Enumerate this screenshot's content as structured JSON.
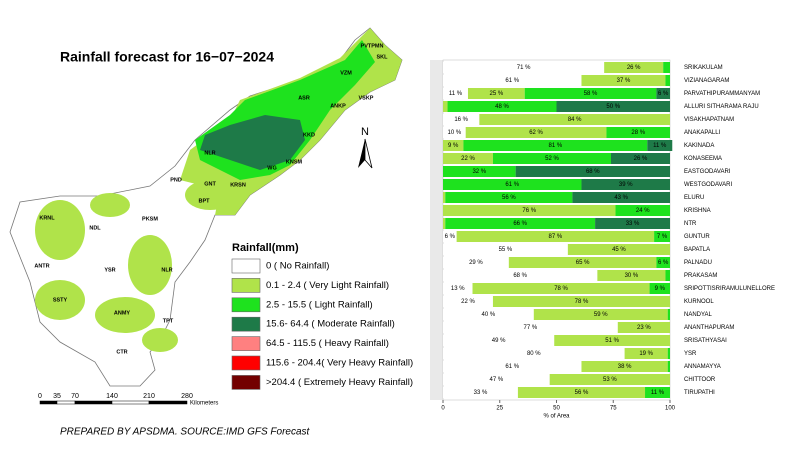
{
  "title": "Rainfall forecast for 16−07−2024",
  "footer": "PREPARED BY APSDMA. SOURCE:IMD GFS Forecast",
  "north": "N",
  "map_labels": [
    "PVTPMN",
    "SKL",
    "VZM",
    "ASR",
    "VSKP",
    "ANKP",
    "KKD",
    "NLR",
    "KNSM",
    "WG",
    "PND",
    "GNT",
    "KRSN",
    "BPT",
    "PKSM",
    "KRNL",
    "NDL",
    "NLR",
    "ANTR",
    "YSR",
    "SSTY",
    "ANMY",
    "TPT",
    "CTR"
  ],
  "legend_title": "Rainfall(mm)",
  "legend_extra": [
    {
      "name": "64.5 - 115.5 ( Heavy Rainfall)",
      "color": "#ff8080"
    },
    {
      "name": "115.6 - 204.4( Very Heavy Rainfall)",
      "color": "#ff0000"
    },
    {
      "name": ">204.4 ( Extremely Heavy Rainfall)",
      "color": "#730000"
    }
  ],
  "scale_bar": {
    "ticks": [
      "0",
      "35",
      "70",
      "140",
      "210",
      "280"
    ],
    "unit": "Kilometers"
  },
  "chart_data": {
    "type": "bar",
    "orientation": "horizontal",
    "stacked": true,
    "xlabel": "% of Area",
    "categories": [
      "SRIKAKULAM",
      "VIZIANAGARAM",
      "PARVATHIPURAMMANYAM",
      "ALLURI SITHARAMA RAJU",
      "VISAKHAPATNAM",
      "ANAKAPALLI",
      "KAKINADA",
      "KONASEEMA",
      "EASTGODAVARI",
      "WESTGODAVARI",
      "ELURU",
      "KRISHNA",
      "NTR",
      "GUNTUR",
      "BAPATLA",
      "PALNADU",
      "PRAKASAM",
      "SRIPOTTISRIRAMULUNELLORE",
      "KURNOOL",
      "NANDYAL",
      "ANANTHAPURAM",
      "SRISATHYASAI",
      "YSR",
      "ANNAMAYYA",
      "CHITTOOR",
      "TIRUPATHI"
    ],
    "series": [
      {
        "name": "0 ( No Rainfall)",
        "color": "#ffffff",
        "values": [
          71,
          61,
          11,
          null,
          16,
          10,
          null,
          null,
          null,
          null,
          null,
          null,
          null,
          6,
          55,
          29,
          68,
          13,
          22,
          40,
          77,
          49,
          80,
          61,
          47,
          33
        ],
        "value_labels": [
          "71 %",
          "61 %",
          "11 %",
          null,
          "16 %",
          "10 %",
          null,
          null,
          null,
          null,
          null,
          null,
          null,
          "6 %",
          "55 %",
          "29 %",
          "68 %",
          "13 %",
          "22 %",
          "40 %",
          "77 %",
          "49 %",
          "80 %",
          "61 %",
          "47 %",
          "33 %"
        ]
      },
      {
        "name": "0.1 - 2.4 ( Very Light Rainfall)",
        "color": "#b0e34a",
        "values": [
          26,
          37,
          25,
          2,
          84,
          62,
          9,
          22,
          null,
          null,
          1,
          76,
          1,
          87,
          45,
          65,
          30,
          78,
          78,
          59,
          23,
          51,
          19,
          38,
          53,
          56
        ],
        "value_labels": [
          "26 %",
          "37 %",
          "25 %",
          null,
          "84 %",
          "62 %",
          "9 %",
          "22 %",
          null,
          null,
          null,
          "76 %",
          null,
          "87 %",
          "45 %",
          "65 %",
          "30 %",
          "78 %",
          "78 %",
          "59 %",
          "23 %",
          "51 %",
          "19 %",
          "38 %",
          "53 %",
          "56 %"
        ]
      },
      {
        "name": "2.5 - 15.5 ( Light Rainfall)",
        "color": "#1ee21e",
        "values": [
          3,
          2,
          58,
          48,
          null,
          28,
          81,
          52,
          32,
          61,
          56,
          24,
          66,
          7,
          null,
          6,
          2,
          9,
          null,
          1,
          null,
          null,
          1,
          1,
          null,
          11
        ],
        "value_labels": [
          null,
          null,
          "58 %",
          "48 %",
          null,
          "28 %",
          "81 %",
          "52 %",
          "32 %",
          "61 %",
          "56 %",
          "24 %",
          "66 %",
          "7 %",
          null,
          "6 %",
          null,
          "9 %",
          null,
          null,
          null,
          null,
          null,
          null,
          null,
          "11 %"
        ]
      },
      {
        "name": "15.6- 64.4 ( Moderate Rainfall)",
        "color": "#1e7a48",
        "values": [
          null,
          null,
          6,
          50,
          null,
          null,
          11,
          26,
          68,
          39,
          43,
          null,
          33,
          null,
          null,
          null,
          null,
          null,
          null,
          null,
          null,
          null,
          null,
          null,
          null,
          null
        ],
        "value_labels": [
          null,
          null,
          "6 %",
          "50 %",
          null,
          null,
          "11 %",
          "26 %",
          "68 %",
          "39 %",
          "43 %",
          null,
          "33 %",
          null,
          null,
          null,
          null,
          null,
          null,
          null,
          null,
          null,
          null,
          null,
          null,
          null
        ]
      }
    ],
    "xlim": [
      0,
      100
    ],
    "xticks": [
      0,
      25,
      50,
      75,
      100
    ]
  }
}
